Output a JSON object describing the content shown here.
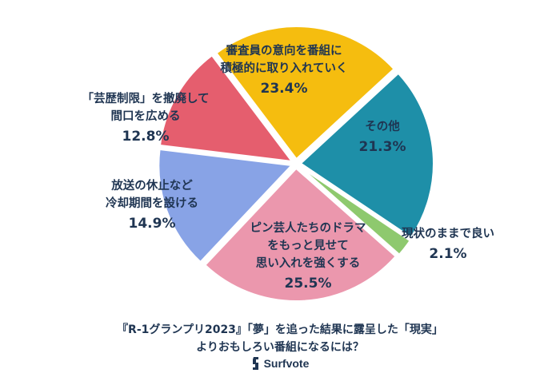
{
  "chart_data": {
    "type": "pie",
    "slices": [
      {
        "label": "審査員の意向を番組に\n積極的に取り入れていく",
        "value": 23.4,
        "pct_label": "23.4%",
        "color": "#f5bd0f"
      },
      {
        "label": "その他",
        "value": 21.3,
        "pct_label": "21.3%",
        "color": "#1e8fa8"
      },
      {
        "label": "現状のままで良い",
        "value": 2.1,
        "pct_label": "2.1%",
        "color": "#8ec96e"
      },
      {
        "label": "ピン芸人たちのドラマ\nをもっと見せて\n思い入れを強くする",
        "value": 25.5,
        "pct_label": "25.5%",
        "color": "#eb97ad"
      },
      {
        "label": "放送の休止など\n冷却期間を設ける",
        "value": 14.9,
        "pct_label": "14.9%",
        "color": "#88a3e6"
      },
      {
        "label": "「芸歴制限」を撤廃して\n間口を広める",
        "value": 12.8,
        "pct_label": "12.8%",
        "color": "#e55e6e"
      }
    ]
  },
  "caption": {
    "line1": "『R-1グランプリ2023』「夢」を追った結果に露呈した「現実」",
    "line2": "よりおもしろい番組になるには？"
  },
  "brand": {
    "name": "Surfvote",
    "icon": "surfvote-logo-icon",
    "color": "#1f3552"
  }
}
